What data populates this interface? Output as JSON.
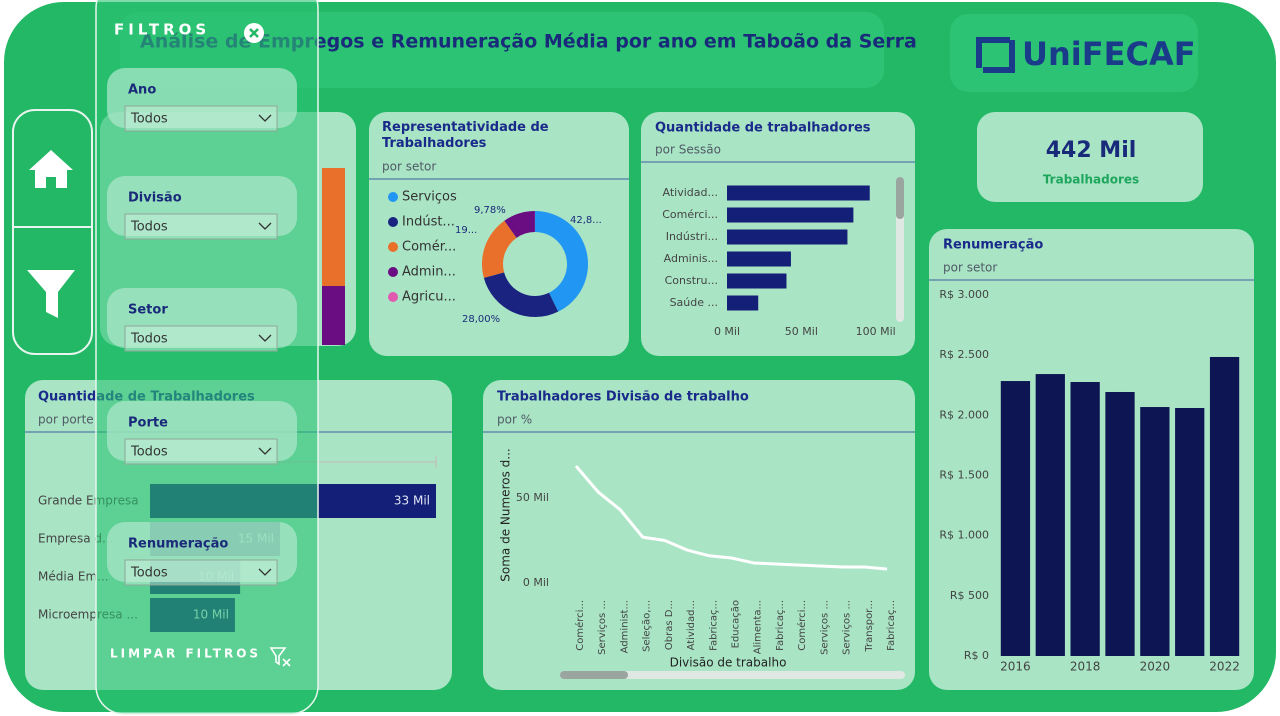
{
  "header": {
    "title": "Análise de Empregos e Remuneração Média por ano em Taboão da Serra",
    "logo": "UniFECAF"
  },
  "kpi": {
    "value": "442 Mil",
    "label": "Trabalhadores"
  },
  "filters": {
    "title": "FILTROS",
    "fields": [
      {
        "label": "Ano",
        "value": "Todos"
      },
      {
        "label": "Divisão",
        "value": "Todos"
      },
      {
        "label": "Setor",
        "value": "Todos"
      },
      {
        "label": "Porte",
        "value": "Todos"
      },
      {
        "label": "Renumeração",
        "value": "Todos"
      }
    ],
    "clear": "LIMPAR FILTROS"
  },
  "chart_data": [
    {
      "type": "donut",
      "title": "Representatividade de Trabalhadores",
      "subtitle": "por setor",
      "categories": [
        "Serviços",
        "Indúst...",
        "Comér...",
        "Admin...",
        "Agricu..."
      ],
      "values": [
        42.8,
        28.0,
        19.4,
        9.78,
        0.02
      ],
      "value_labels": [
        "42,8...",
        "28,00%",
        "19...",
        "9,78%",
        null
      ],
      "colors": [
        "#2196f3",
        "#1a2380",
        "#e8702a",
        "#6a0d83",
        "#e05ab0"
      ]
    },
    {
      "type": "hbar",
      "title": "Quantidade de trabalhadores",
      "subtitle": "por Sessão",
      "categories": [
        "Atividad...",
        "Comérci...",
        "Indústri...",
        "Adminis...",
        "Constru...",
        "Saúde ..."
      ],
      "values": [
        96,
        85,
        81,
        43,
        40,
        21
      ],
      "color": "#142078",
      "xlim": [
        0,
        115
      ],
      "xticks": [
        {
          "value": 0,
          "label": "0 Mil"
        },
        {
          "value": 50,
          "label": "50 Mil"
        },
        {
          "value": 100,
          "label": "100 Mil"
        }
      ]
    },
    {
      "type": "bar",
      "title": "Renumeração",
      "subtitle": "por setor",
      "categories": [
        "2016",
        null,
        "2018",
        null,
        "2020",
        null,
        "2022"
      ],
      "values": [
        2285,
        2343,
        2277,
        2194,
        2069,
        2061,
        2485
      ],
      "color": "#0d1652",
      "ylim": [
        0,
        3000
      ],
      "yticks": [
        {
          "value": 0,
          "label": "R$ 0"
        },
        {
          "value": 500,
          "label": "R$ 500"
        },
        {
          "value": 1000,
          "label": "R$ 1.000"
        },
        {
          "value": 1500,
          "label": "R$ 1.500"
        },
        {
          "value": 2000,
          "label": "R$ 2.000"
        },
        {
          "value": 2500,
          "label": "R$ 2.500"
        },
        {
          "value": 3000,
          "label": "R$ 3.000"
        }
      ]
    },
    {
      "type": "line",
      "title": "Trabalhadores Divisão de trabalho",
      "subtitle": "por %",
      "x_label": "Divisão de trabalho",
      "y_label": "Soma de Numeros d...",
      "categories": [
        "Comérci...",
        "Serviços ...",
        "Administ...",
        "Seleção,...",
        "Obras D...",
        "Atividad...",
        "Fabricaç...",
        "Educação",
        "Alimenta...",
        "Fabricaç...",
        "Comérci...",
        "Serviços ...",
        "Serviços ...",
        "Transpor...",
        "Fabricaç..."
      ],
      "values": [
        68.8,
        53.5,
        43,
        27,
        25,
        19.4,
        16,
        14.7,
        11.8,
        11.2,
        10.6,
        10,
        9.4,
        9.4,
        8.2
      ],
      "color": "#ffffff",
      "ylim": [
        0,
        75
      ],
      "yticks": [
        {
          "value": 0,
          "label": "0 Mil"
        },
        {
          "value": 50,
          "label": "50 Mil"
        }
      ]
    },
    {
      "type": "hbar",
      "title": "Quantidade de Trabalhadores",
      "subtitle": "por porte",
      "categories": [
        "Grande Empresa",
        "Empresa d...",
        "Média Em...",
        "Microempresa ..."
      ],
      "values": [
        33,
        15,
        10.4,
        9.8
      ],
      "value_labels": [
        "33 Mil",
        "15 Mil",
        "10 Mil",
        "10 Mil"
      ],
      "color": "#142078",
      "xlim": [
        0,
        33
      ]
    }
  ]
}
